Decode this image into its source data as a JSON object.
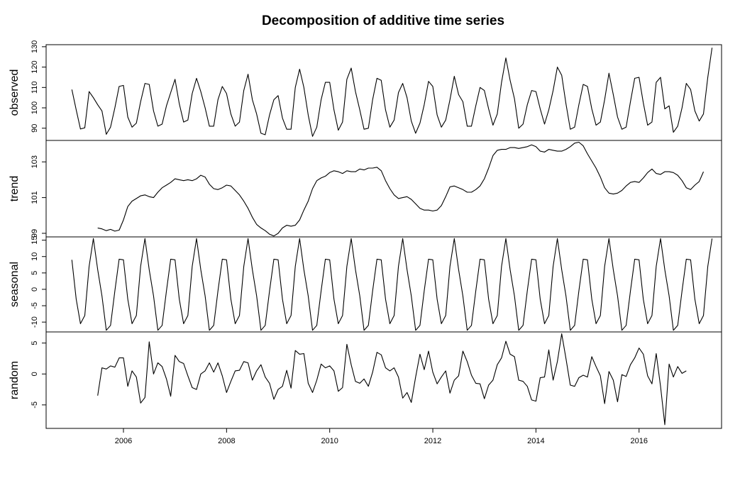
{
  "chart_data": {
    "type": "line",
    "title": "Decomposition of additive time series",
    "x_ticks": [
      2006,
      2008,
      2010,
      2012,
      2014,
      2016
    ],
    "xlim": [
      2004.5,
      2017.6
    ],
    "panels": [
      {
        "name": "observed",
        "ylabel": "observed",
        "ylim": [
          84,
          131
        ],
        "y_ticks": [
          90,
          100,
          110,
          120,
          130
        ],
        "start": 2005.0,
        "step": 0.08333,
        "values": [
          109,
          99,
          89.6,
          90.2,
          108,
          105,
          101.5,
          98.5,
          87,
          90.5,
          100,
          110.5,
          111,
          95.5,
          90.5,
          92.5,
          103,
          112,
          111.5,
          98.5,
          91,
          92,
          101,
          107.5,
          114,
          102,
          93,
          94,
          107,
          114.5,
          108,
          100,
          91,
          91,
          104,
          110.5,
          107,
          97,
          91,
          93,
          108.5,
          116.5,
          104,
          97,
          87.5,
          86.8,
          96.5,
          104,
          106,
          95,
          89.5,
          89.5,
          110,
          119,
          110,
          96.5,
          86,
          90.5,
          104,
          112.5,
          112.5,
          99,
          89,
          93,
          114,
          119.5,
          108,
          99,
          89.5,
          90,
          104,
          114.5,
          113.5,
          99,
          90.5,
          94,
          107.5,
          112,
          105,
          93.5,
          87.5,
          92.5,
          101.5,
          113,
          110.5,
          96.5,
          90.5,
          94,
          104,
          115.5,
          106.5,
          103,
          91,
          91,
          101,
          110,
          108.5,
          99.5,
          91.5,
          97,
          112.5,
          124.5,
          113.5,
          104.5,
          90,
          92,
          101.5,
          108.5,
          108,
          99.5,
          92,
          99,
          108.5,
          120,
          116,
          102,
          89.5,
          90.5,
          101.5,
          111.5,
          110.5,
          99.5,
          91.5,
          93,
          104,
          117,
          106.5,
          95.5,
          89.5,
          90.5,
          103,
          114.5,
          115,
          102.5,
          91.5,
          93,
          112.5,
          115,
          99.5,
          101,
          88,
          91,
          100,
          112,
          109,
          98.5,
          93.5,
          97,
          115,
          129.5
        ]
      },
      {
        "name": "trend",
        "ylabel": "trend",
        "ylim": [
          98.8,
          104.2
        ],
        "y_ticks": [
          99,
          101,
          103
        ],
        "y_tick_labels": [
          "99",
          "101",
          "103"
        ],
        "start": 2005.5,
        "step": 0.08333,
        "values": [
          99.3,
          99.25,
          99.15,
          99.22,
          99.12,
          99.18,
          99.75,
          100.5,
          100.8,
          100.95,
          101.1,
          101.15,
          101.05,
          101.0,
          101.3,
          101.55,
          101.7,
          101.85,
          102.05,
          102.0,
          101.95,
          102.0,
          101.95,
          102.05,
          102.25,
          102.15,
          101.75,
          101.5,
          101.45,
          101.55,
          101.7,
          101.65,
          101.4,
          101.15,
          100.8,
          100.4,
          99.9,
          99.5,
          99.3,
          99.15,
          98.95,
          98.85,
          99.0,
          99.3,
          99.45,
          99.4,
          99.45,
          99.75,
          100.3,
          100.8,
          101.5,
          101.95,
          102.1,
          102.2,
          102.4,
          102.5,
          102.45,
          102.35,
          102.5,
          102.45,
          102.45,
          102.6,
          102.55,
          102.65,
          102.65,
          102.7,
          102.5,
          101.95,
          101.5,
          101.15,
          100.95,
          101.0,
          101.05,
          100.9,
          100.65,
          100.4,
          100.3,
          100.3,
          100.25,
          100.3,
          100.55,
          101.05,
          101.6,
          101.65,
          101.55,
          101.45,
          101.3,
          101.3,
          101.45,
          101.65,
          102.05,
          102.65,
          103.35,
          103.65,
          103.7,
          103.7,
          103.8,
          103.8,
          103.75,
          103.8,
          103.85,
          103.95,
          103.85,
          103.6,
          103.55,
          103.7,
          103.65,
          103.6,
          103.6,
          103.7,
          103.85,
          104.05,
          104.1,
          103.9,
          103.45,
          103.05,
          102.65,
          102.15,
          101.55,
          101.25,
          101.2,
          101.25,
          101.4,
          101.65,
          101.85,
          101.9,
          101.85,
          102.1,
          102.4,
          102.6,
          102.35,
          102.3,
          102.45,
          102.45,
          102.4,
          102.25,
          101.95,
          101.55,
          101.45,
          101.7,
          101.9,
          102.45
        ]
      },
      {
        "name": "seasonal",
        "ylabel": "seasonal",
        "ylim": [
          -13,
          16
        ],
        "y_ticks": [
          -10,
          -5,
          0,
          5,
          10,
          15
        ],
        "start": 2005.0,
        "step": 0.08333,
        "pattern": [
          9,
          -3,
          -10.5,
          -8,
          7,
          15.5,
          6,
          -2,
          -12.5,
          -11,
          -0.5,
          9.2
        ],
        "pattern_start_index": 0,
        "count": 150
      },
      {
        "name": "random",
        "ylabel": "random",
        "ylim": [
          -8.8,
          6.8
        ],
        "y_ticks": [
          -5,
          0,
          5
        ],
        "start": 2005.5,
        "step": 0.08333,
        "values": [
          -3.5,
          1.0,
          0.8,
          1.3,
          1.1,
          2.6,
          2.6,
          -2.0,
          0.5,
          -0.5,
          -4.7,
          -3.8,
          5.2,
          0.0,
          1.8,
          1.2,
          -0.8,
          -3.6,
          3.0,
          2.0,
          1.7,
          -0.3,
          -2.2,
          -2.5,
          0.0,
          0.5,
          1.8,
          0.3,
          1.8,
          -0.3,
          -3.0,
          -1.2,
          0.5,
          0.6,
          2.0,
          1.8,
          -1.0,
          0.5,
          1.5,
          -0.5,
          -1.5,
          -4.1,
          -2.5,
          -2.0,
          0.6,
          -2.3,
          3.8,
          3.2,
          3.3,
          -1.5,
          -3.0,
          -1.0,
          1.6,
          1.0,
          1.3,
          0.5,
          -2.8,
          -2.2,
          4.8,
          1.5,
          -1.2,
          -1.5,
          -0.8,
          -2.0,
          0.3,
          3.5,
          3.1,
          1.0,
          0.5,
          1.0,
          -0.5,
          -3.9,
          -3.0,
          -4.6,
          -0.5,
          3.2,
          0.7,
          3.7,
          0.3,
          -1.6,
          -0.5,
          0.5,
          -3.1,
          -1.0,
          -0.3,
          3.7,
          2.0,
          -0.2,
          -1.5,
          -1.6,
          -4.0,
          -1.8,
          -1.0,
          1.5,
          2.6,
          5.3,
          3.2,
          2.8,
          -1.0,
          -1.2,
          -2.0,
          -4.2,
          -4.4,
          -0.6,
          -0.5,
          3.9,
          -1.0,
          2.0,
          6.5,
          2.5,
          -1.8,
          -2.0,
          -0.6,
          -0.2,
          -0.5,
          2.8,
          1.2,
          -0.3,
          -4.8,
          0.4,
          -1.0,
          -4.5,
          -0.1,
          -0.4,
          1.5,
          2.6,
          4.2,
          3.2,
          -0.3,
          -1.6,
          3.3,
          -2.0,
          -8.2,
          1.6,
          -0.5,
          1.2,
          0.1,
          0.5
        ]
      }
    ]
  }
}
